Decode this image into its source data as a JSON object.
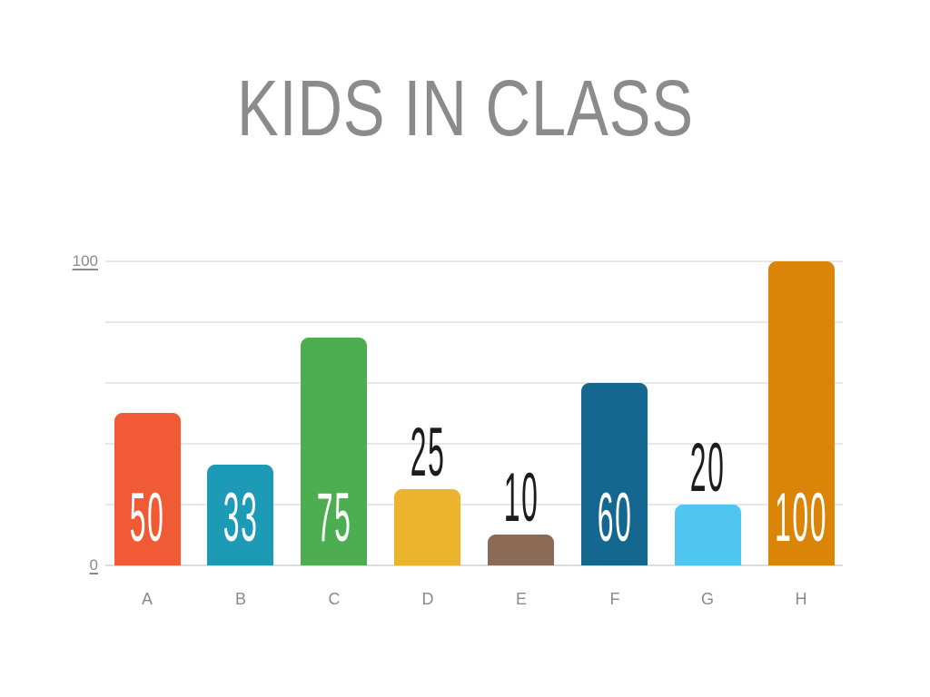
{
  "title": "KIDS IN CLASS",
  "chart_data": {
    "type": "bar",
    "title": "KIDS IN CLASS",
    "categories": [
      "A",
      "B",
      "C",
      "D",
      "E",
      "F",
      "G",
      "H"
    ],
    "values": [
      50,
      33,
      75,
      25,
      10,
      60,
      20,
      100
    ],
    "bar_colors": [
      "#F05B35",
      "#1D9AB5",
      "#4CAE51",
      "#ECB32C",
      "#8C6B56",
      "#14688F",
      "#51C5F2",
      "#DB8508"
    ],
    "value_label_placement": [
      "inside",
      "inside",
      "inside",
      "above",
      "above",
      "inside",
      "above",
      "inside"
    ],
    "xlabel": "",
    "ylabel": "",
    "ylim": [
      0,
      100
    ],
    "yticks": [
      0,
      100
    ],
    "gridline_values": [
      0,
      20,
      40,
      60,
      80,
      100
    ],
    "grid": true,
    "legend": false
  },
  "colors": {
    "background": "#FFFFFF",
    "title_text": "#8B8B8B",
    "tick_text": "#8A8A8A",
    "category_text": "#8A8A8A",
    "gridline": "#E7E7E7",
    "value_inside": "#FFFFFF",
    "value_above": "#1C1C1C"
  }
}
